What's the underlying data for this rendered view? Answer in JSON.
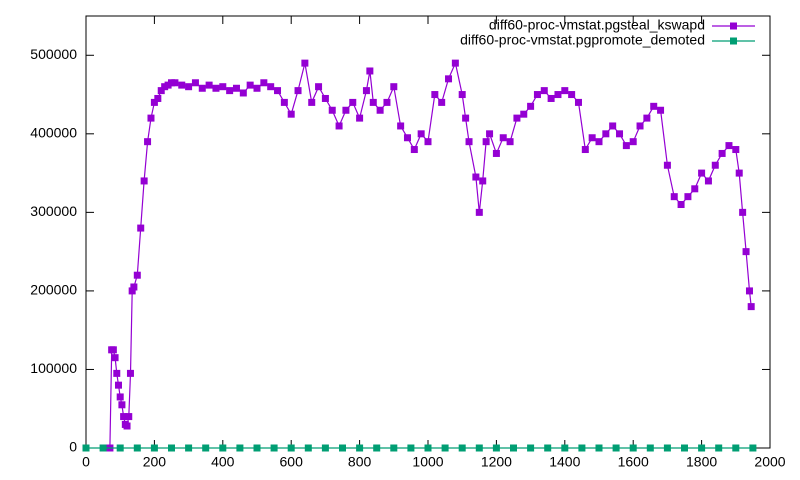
{
  "chart_data": {
    "type": "line",
    "xlim": [
      0,
      2000
    ],
    "xticks": [
      0,
      200,
      400,
      600,
      800,
      1000,
      1200,
      1400,
      1600,
      1800,
      2000
    ],
    "ylim": [
      0,
      550000
    ],
    "yticks": [
      0,
      100000,
      200000,
      300000,
      400000,
      500000
    ],
    "legend": "top-right",
    "series": [
      {
        "name": "diff60-proc-vmstat.pgsteal_kswapd",
        "color": "#9400d3",
        "x": [
          70,
          75,
          80,
          85,
          90,
          95,
          100,
          105,
          110,
          115,
          120,
          125,
          130,
          135,
          140,
          150,
          160,
          170,
          180,
          190,
          200,
          210,
          220,
          230,
          240,
          250,
          260,
          280,
          300,
          320,
          340,
          360,
          380,
          400,
          420,
          440,
          460,
          480,
          500,
          520,
          540,
          560,
          580,
          600,
          620,
          640,
          660,
          680,
          700,
          720,
          740,
          760,
          780,
          800,
          820,
          830,
          840,
          860,
          880,
          900,
          920,
          940,
          960,
          980,
          1000,
          1020,
          1040,
          1060,
          1080,
          1100,
          1110,
          1120,
          1140,
          1150,
          1160,
          1170,
          1180,
          1200,
          1220,
          1240,
          1260,
          1280,
          1300,
          1320,
          1340,
          1360,
          1380,
          1400,
          1420,
          1440,
          1460,
          1480,
          1500,
          1520,
          1540,
          1560,
          1580,
          1600,
          1620,
          1640,
          1660,
          1680,
          1700,
          1720,
          1740,
          1760,
          1780,
          1800,
          1820,
          1840,
          1860,
          1880,
          1900,
          1910,
          1920,
          1930,
          1940,
          1945
        ],
        "values": [
          0,
          125000,
          125000,
          115000,
          95000,
          80000,
          65000,
          55000,
          40000,
          30000,
          28000,
          40000,
          95000,
          200000,
          205000,
          220000,
          280000,
          340000,
          390000,
          420000,
          440000,
          445000,
          455000,
          460000,
          462000,
          465000,
          465000,
          462000,
          460000,
          465000,
          458000,
          462000,
          458000,
          460000,
          455000,
          458000,
          452000,
          462000,
          458000,
          465000,
          460000,
          455000,
          440000,
          425000,
          455000,
          490000,
          440000,
          460000,
          445000,
          430000,
          410000,
          430000,
          440000,
          420000,
          455000,
          480000,
          440000,
          430000,
          440000,
          460000,
          410000,
          395000,
          380000,
          400000,
          390000,
          450000,
          440000,
          470000,
          490000,
          450000,
          420000,
          390000,
          345000,
          300000,
          340000,
          390000,
          400000,
          375000,
          395000,
          390000,
          420000,
          425000,
          435000,
          450000,
          455000,
          445000,
          450000,
          455000,
          450000,
          440000,
          380000,
          395000,
          390000,
          400000,
          410000,
          400000,
          385000,
          390000,
          410000,
          420000,
          435000,
          430000,
          360000,
          320000,
          310000,
          320000,
          330000,
          350000,
          340000,
          360000,
          375000,
          385000,
          380000,
          350000,
          300000,
          250000,
          200000,
          180000
        ]
      },
      {
        "name": "diff60-proc-vmstat.pgpromote_demoted",
        "color": "#009e73",
        "x": [
          0,
          50,
          100,
          150,
          200,
          250,
          300,
          350,
          400,
          450,
          500,
          550,
          600,
          650,
          700,
          750,
          800,
          850,
          900,
          950,
          1000,
          1050,
          1100,
          1150,
          1200,
          1250,
          1300,
          1350,
          1400,
          1450,
          1500,
          1550,
          1600,
          1650,
          1700,
          1750,
          1800,
          1850,
          1900,
          1950
        ],
        "values": [
          0,
          0,
          0,
          0,
          0,
          0,
          0,
          0,
          0,
          0,
          0,
          0,
          0,
          0,
          0,
          0,
          0,
          0,
          0,
          0,
          0,
          0,
          0,
          0,
          0,
          0,
          0,
          0,
          0,
          0,
          0,
          0,
          0,
          0,
          0,
          0,
          0,
          0,
          0,
          0
        ]
      }
    ]
  }
}
